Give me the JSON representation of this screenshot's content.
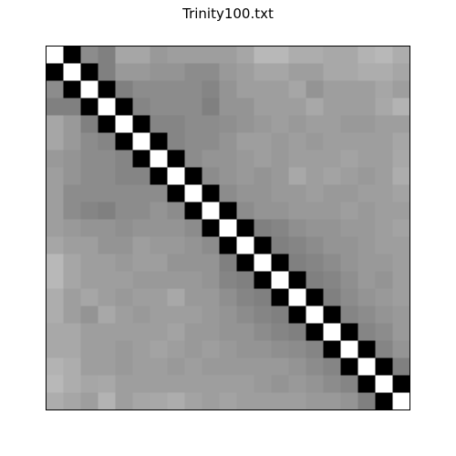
{
  "chart_data": {
    "type": "heatmap",
    "title": "Trinity100.txt",
    "xlabel": "",
    "ylabel": "",
    "rows": 21,
    "cols": 21,
    "colormap": "gray",
    "range": [
      0,
      1
    ],
    "grid": false,
    "axes_ticks": false,
    "values": [
      [
        1.0,
        0.0,
        0.55,
        0.5,
        0.65,
        0.65,
        0.6,
        0.62,
        0.62,
        0.62,
        0.62,
        0.65,
        0.72,
        0.72,
        0.68,
        0.68,
        0.66,
        0.66,
        0.7,
        0.72,
        0.68
      ],
      [
        0.0,
        1.0,
        0.0,
        0.5,
        0.6,
        0.6,
        0.58,
        0.58,
        0.55,
        0.55,
        0.6,
        0.62,
        0.65,
        0.65,
        0.62,
        0.62,
        0.66,
        0.66,
        0.68,
        0.68,
        0.65
      ],
      [
        0.55,
        0.0,
        1.0,
        0.0,
        0.5,
        0.55,
        0.55,
        0.55,
        0.55,
        0.52,
        0.58,
        0.62,
        0.62,
        0.62,
        0.65,
        0.58,
        0.62,
        0.62,
        0.62,
        0.65,
        0.62
      ],
      [
        0.5,
        0.5,
        0.0,
        1.0,
        0.0,
        0.52,
        0.55,
        0.55,
        0.55,
        0.5,
        0.58,
        0.58,
        0.62,
        0.62,
        0.62,
        0.66,
        0.62,
        0.62,
        0.62,
        0.66,
        0.7
      ],
      [
        0.65,
        0.6,
        0.5,
        0.0,
        1.0,
        0.0,
        0.52,
        0.52,
        0.55,
        0.55,
        0.56,
        0.58,
        0.6,
        0.62,
        0.6,
        0.62,
        0.62,
        0.6,
        0.6,
        0.62,
        0.62
      ],
      [
        0.65,
        0.6,
        0.55,
        0.52,
        0.0,
        1.0,
        0.0,
        0.52,
        0.55,
        0.55,
        0.58,
        0.62,
        0.62,
        0.6,
        0.62,
        0.6,
        0.62,
        0.62,
        0.62,
        0.62,
        0.65
      ],
      [
        0.6,
        0.58,
        0.55,
        0.55,
        0.52,
        0.0,
        1.0,
        0.0,
        0.55,
        0.58,
        0.58,
        0.6,
        0.62,
        0.6,
        0.62,
        0.62,
        0.62,
        0.64,
        0.62,
        0.62,
        0.66
      ],
      [
        0.62,
        0.58,
        0.55,
        0.55,
        0.52,
        0.52,
        0.0,
        1.0,
        0.0,
        0.55,
        0.58,
        0.6,
        0.58,
        0.6,
        0.66,
        0.62,
        0.64,
        0.62,
        0.6,
        0.62,
        0.68
      ],
      [
        0.62,
        0.55,
        0.55,
        0.55,
        0.55,
        0.55,
        0.55,
        0.0,
        1.0,
        0.0,
        0.55,
        0.58,
        0.58,
        0.6,
        0.6,
        0.62,
        0.6,
        0.6,
        0.62,
        0.62,
        0.64
      ],
      [
        0.62,
        0.55,
        0.52,
        0.5,
        0.55,
        0.55,
        0.58,
        0.55,
        0.0,
        1.0,
        0.0,
        0.55,
        0.58,
        0.58,
        0.6,
        0.6,
        0.6,
        0.62,
        0.6,
        0.62,
        0.62
      ],
      [
        0.62,
        0.6,
        0.58,
        0.58,
        0.56,
        0.58,
        0.58,
        0.58,
        0.55,
        0.0,
        1.0,
        0.0,
        0.5,
        0.52,
        0.56,
        0.58,
        0.58,
        0.6,
        0.6,
        0.62,
        0.64
      ],
      [
        0.65,
        0.62,
        0.62,
        0.58,
        0.58,
        0.62,
        0.6,
        0.6,
        0.58,
        0.55,
        0.0,
        1.0,
        0.0,
        0.5,
        0.52,
        0.55,
        0.58,
        0.58,
        0.6,
        0.62,
        0.62
      ],
      [
        0.72,
        0.65,
        0.62,
        0.62,
        0.6,
        0.62,
        0.62,
        0.58,
        0.58,
        0.58,
        0.5,
        0.0,
        1.0,
        0.0,
        0.5,
        0.52,
        0.55,
        0.58,
        0.6,
        0.6,
        0.62
      ],
      [
        0.72,
        0.65,
        0.62,
        0.62,
        0.62,
        0.6,
        0.6,
        0.6,
        0.6,
        0.58,
        0.52,
        0.5,
        0.0,
        1.0,
        0.0,
        0.5,
        0.52,
        0.56,
        0.6,
        0.58,
        0.62
      ],
      [
        0.68,
        0.62,
        0.65,
        0.62,
        0.6,
        0.62,
        0.62,
        0.66,
        0.6,
        0.6,
        0.56,
        0.52,
        0.5,
        0.0,
        1.0,
        0.0,
        0.5,
        0.55,
        0.58,
        0.6,
        0.62
      ],
      [
        0.68,
        0.62,
        0.58,
        0.66,
        0.62,
        0.6,
        0.62,
        0.62,
        0.62,
        0.6,
        0.58,
        0.55,
        0.52,
        0.5,
        0.0,
        1.0,
        0.0,
        0.52,
        0.55,
        0.58,
        0.6
      ],
      [
        0.66,
        0.66,
        0.62,
        0.62,
        0.62,
        0.62,
        0.62,
        0.64,
        0.6,
        0.6,
        0.58,
        0.58,
        0.55,
        0.52,
        0.5,
        0.0,
        1.0,
        0.0,
        0.52,
        0.55,
        0.6
      ],
      [
        0.66,
        0.66,
        0.62,
        0.62,
        0.6,
        0.62,
        0.64,
        0.62,
        0.6,
        0.62,
        0.6,
        0.58,
        0.58,
        0.56,
        0.55,
        0.52,
        0.0,
        1.0,
        0.0,
        0.52,
        0.58
      ],
      [
        0.7,
        0.68,
        0.62,
        0.62,
        0.6,
        0.62,
        0.62,
        0.6,
        0.62,
        0.6,
        0.6,
        0.6,
        0.6,
        0.6,
        0.58,
        0.55,
        0.52,
        0.0,
        1.0,
        0.0,
        0.5
      ],
      [
        0.72,
        0.68,
        0.65,
        0.66,
        0.62,
        0.62,
        0.62,
        0.62,
        0.62,
        0.62,
        0.62,
        0.62,
        0.6,
        0.58,
        0.6,
        0.58,
        0.55,
        0.52,
        0.0,
        1.0,
        0.0
      ],
      [
        0.68,
        0.65,
        0.62,
        0.7,
        0.62,
        0.65,
        0.66,
        0.68,
        0.64,
        0.62,
        0.64,
        0.62,
        0.62,
        0.62,
        0.62,
        0.6,
        0.6,
        0.58,
        0.5,
        0.0,
        1.0
      ]
    ]
  }
}
